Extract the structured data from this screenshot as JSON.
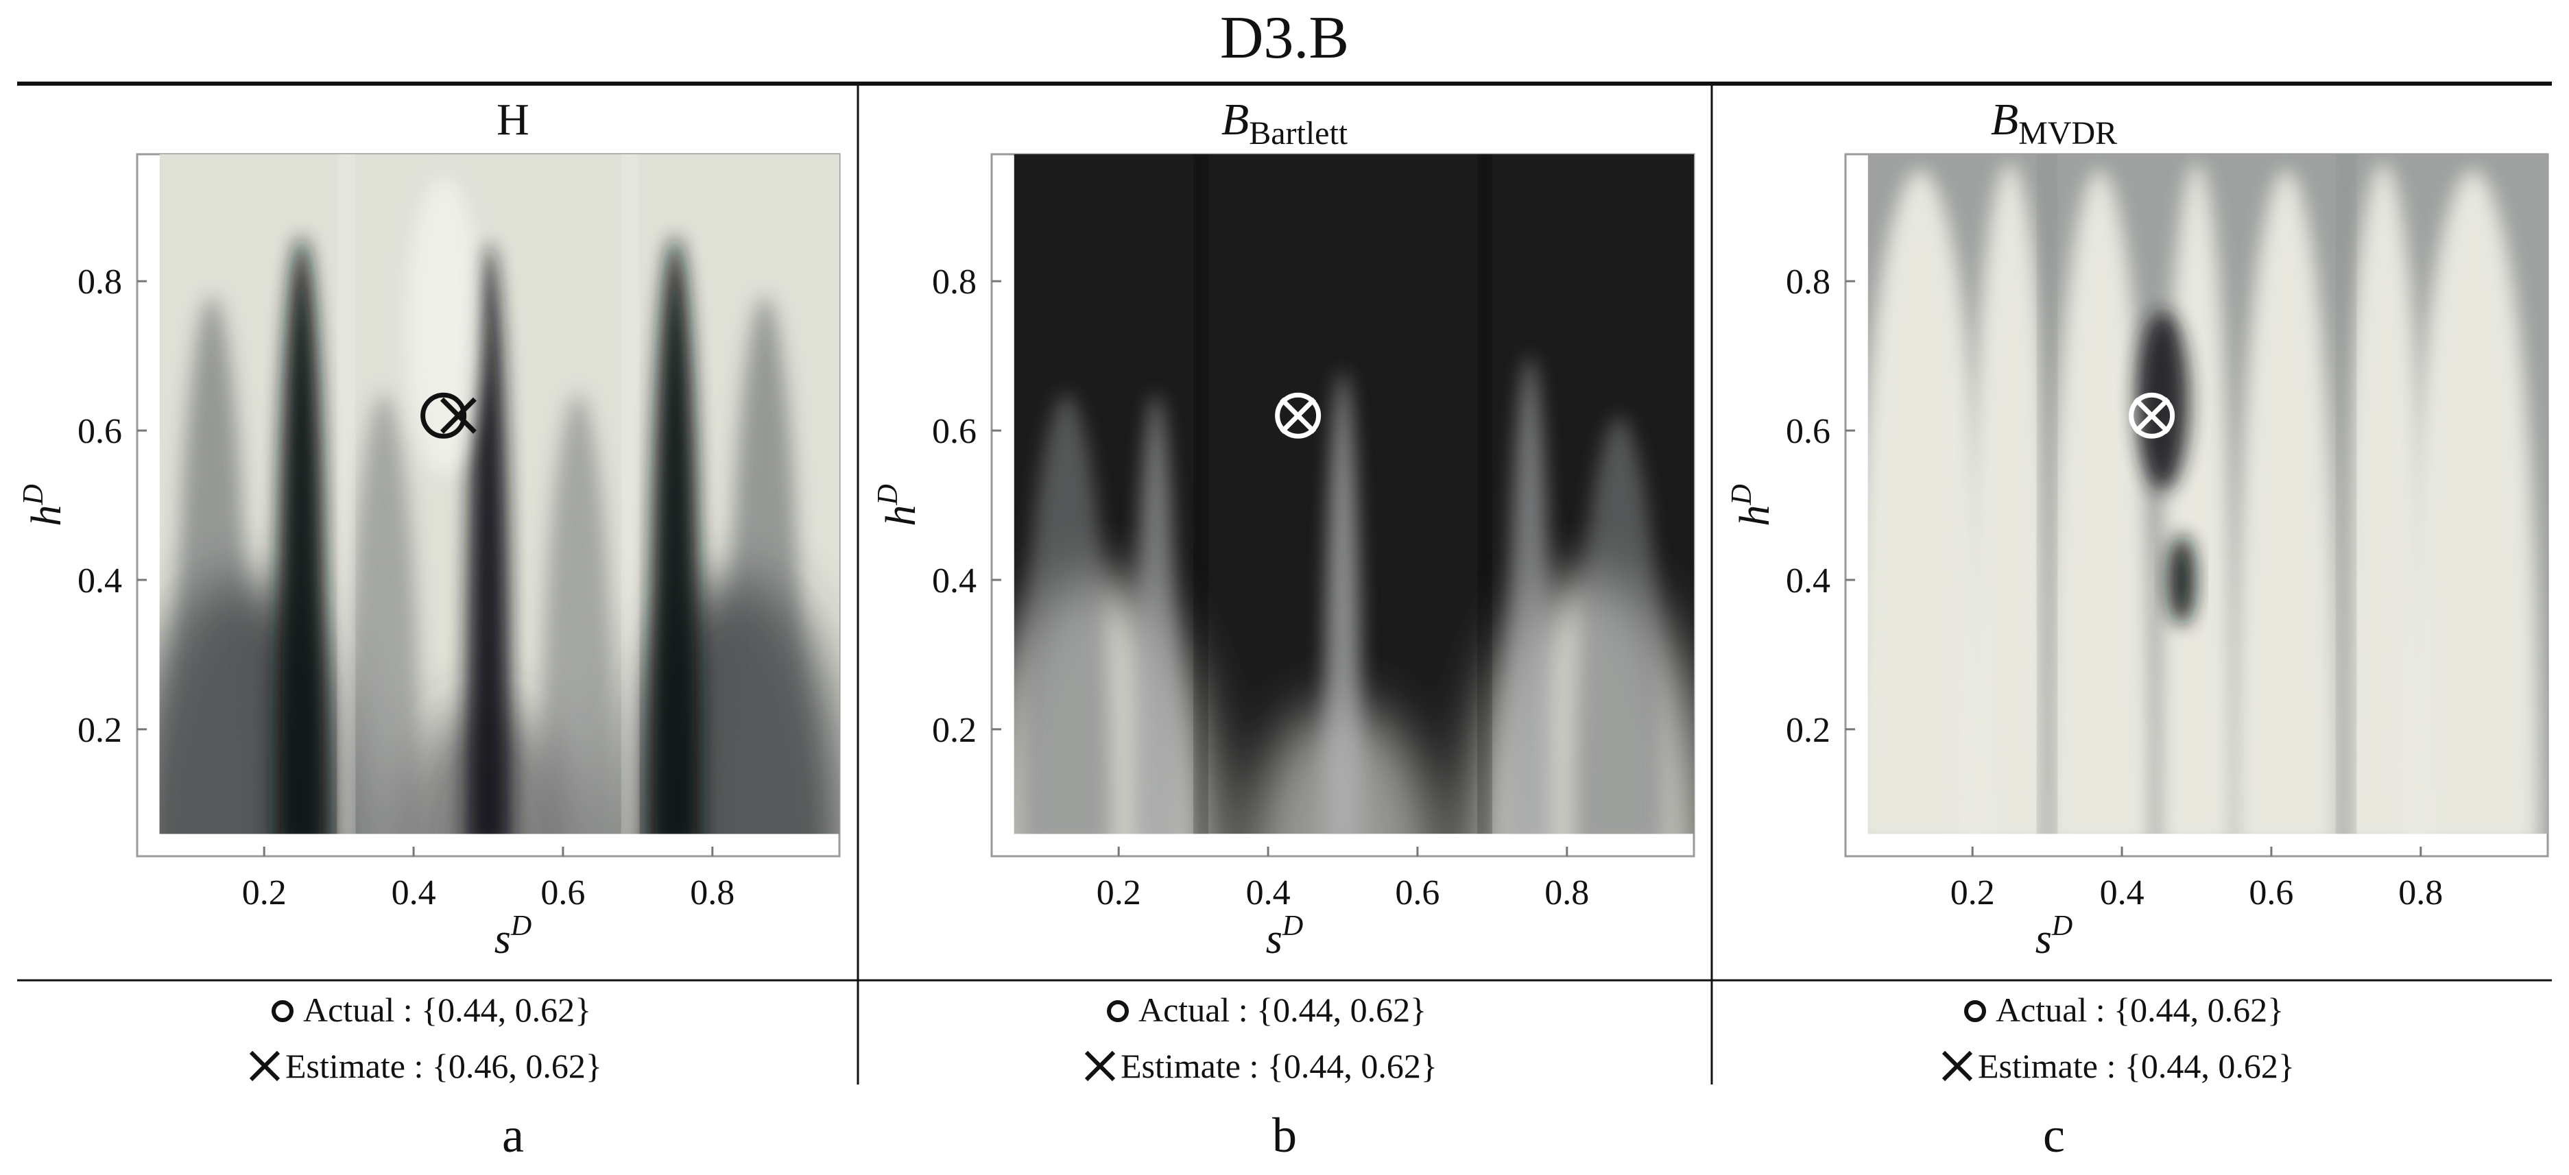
{
  "figure": {
    "title": "D3.B",
    "letters": [
      "a",
      "b",
      "c"
    ]
  },
  "chart_data": [
    {
      "type": "heatmap",
      "id": "H",
      "title": "H",
      "title_sub": "",
      "xlabel_main": "s",
      "xlabel_sup": "D",
      "ylabel_main": "h",
      "ylabel_sup": "D",
      "xlim": [
        0.03,
        0.97
      ],
      "ylim": [
        0.03,
        0.97
      ],
      "plot_range": [
        0.06,
        0.97
      ],
      "xticks": [
        0.2,
        0.4,
        0.6,
        0.8
      ],
      "xtick_labels": [
        "0.2",
        "0.4",
        "0.6",
        "0.8"
      ],
      "yticks": [
        0.2,
        0.4,
        0.6,
        0.8
      ],
      "ytick_labels": [
        "0.2",
        "0.4",
        "0.6",
        "0.8"
      ],
      "background": "#dfe1d7",
      "marker_color": "#111111",
      "actual": [
        0.44,
        0.62
      ],
      "estimate": [
        0.46,
        0.62
      ],
      "legend": {
        "actual_label": "Actual : {0.44, 0.62}",
        "estimate_label": "Estimate : {0.46, 0.62}"
      },
      "features": [
        {
          "kind": "bottom-fan",
          "color": "#3a3d40",
          "opacity": 0.85
        },
        {
          "kind": "ridge",
          "s": 0.13,
          "top": 0.78,
          "width": 0.05,
          "color": "#5a5d60",
          "opacity": 0.55
        },
        {
          "kind": "ridge",
          "s": 0.25,
          "top": 0.86,
          "width": 0.035,
          "color": "#101214",
          "opacity": 0.95
        },
        {
          "kind": "ridge",
          "s": 0.36,
          "top": 0.65,
          "width": 0.05,
          "color": "#6a6d70",
          "opacity": 0.5
        },
        {
          "kind": "ridge",
          "s": 0.5,
          "top": 0.85,
          "width": 0.03,
          "color": "#15171a",
          "opacity": 0.95
        },
        {
          "kind": "ridge",
          "s": 0.62,
          "top": 0.65,
          "width": 0.05,
          "color": "#6a6d70",
          "opacity": 0.5
        },
        {
          "kind": "ridge",
          "s": 0.75,
          "top": 0.86,
          "width": 0.035,
          "color": "#101214",
          "opacity": 0.95
        },
        {
          "kind": "ridge",
          "s": 0.87,
          "top": 0.78,
          "width": 0.05,
          "color": "#5a5d60",
          "opacity": 0.55
        },
        {
          "kind": "stripe",
          "s": 0.31,
          "width": 0.012,
          "color": "#f4f4ee",
          "opacity": 0.9
        },
        {
          "kind": "stripe",
          "s": 0.69,
          "width": 0.012,
          "color": "#f4f4ee",
          "opacity": 0.9
        },
        {
          "kind": "patch",
          "s": 0.44,
          "h": 0.74,
          "rs": 0.05,
          "rh": 0.2,
          "color": "#f2f2ec",
          "opacity": 0.85
        }
      ]
    },
    {
      "type": "heatmap",
      "id": "B_Bartlett",
      "title": "B",
      "title_sub": "Bartlett",
      "xlabel_main": "s",
      "xlabel_sup": "D",
      "ylabel_main": "h",
      "ylabel_sup": "D",
      "xlim": [
        0.03,
        0.97
      ],
      "ylim": [
        0.03,
        0.97
      ],
      "plot_range": [
        0.06,
        0.97
      ],
      "xticks": [
        0.2,
        0.4,
        0.6,
        0.8
      ],
      "xtick_labels": [
        "0.2",
        "0.4",
        "0.6",
        "0.8"
      ],
      "yticks": [
        0.2,
        0.4,
        0.6,
        0.8
      ],
      "ytick_labels": [
        "0.2",
        "0.4",
        "0.6",
        "0.8"
      ],
      "background": "#1b1b1b",
      "marker_color": "#ffffff",
      "actual": [
        0.44,
        0.62
      ],
      "estimate": [
        0.44,
        0.62
      ],
      "legend": {
        "actual_label": "Actual : {0.44, 0.62}",
        "estimate_label": "Estimate : {0.44, 0.62}"
      },
      "features": [
        {
          "kind": "bottom-fan",
          "color": "#d8d8d0",
          "opacity": 0.95
        },
        {
          "kind": "ridge",
          "s": 0.13,
          "top": 0.65,
          "width": 0.06,
          "color": "#7d8082",
          "opacity": 0.6
        },
        {
          "kind": "ridge",
          "s": 0.25,
          "top": 0.65,
          "width": 0.03,
          "color": "#9ea0a2",
          "opacity": 0.7
        },
        {
          "kind": "ridge",
          "s": 0.5,
          "top": 0.68,
          "width": 0.025,
          "color": "#b0b2b4",
          "opacity": 0.75
        },
        {
          "kind": "ridge",
          "s": 0.75,
          "top": 0.7,
          "width": 0.03,
          "color": "#9ea0a2",
          "opacity": 0.7
        },
        {
          "kind": "ridge",
          "s": 0.87,
          "top": 0.62,
          "width": 0.06,
          "color": "#7d8082",
          "opacity": 0.6
        },
        {
          "kind": "stripe",
          "s": 0.31,
          "width": 0.01,
          "color": "#0c0c0c",
          "opacity": 0.8
        },
        {
          "kind": "stripe",
          "s": 0.69,
          "width": 0.01,
          "color": "#0c0c0c",
          "opacity": 0.8
        }
      ]
    },
    {
      "type": "heatmap",
      "id": "B_MVDR",
      "title": "B",
      "title_sub": "MVDR",
      "xlabel_main": "s",
      "xlabel_sup": "D",
      "ylabel_main": "h",
      "ylabel_sup": "D",
      "xlim": [
        0.03,
        0.97
      ],
      "ylim": [
        0.03,
        0.97
      ],
      "plot_range": [
        0.06,
        0.97
      ],
      "xticks": [
        0.2,
        0.4,
        0.6,
        0.8
      ],
      "xtick_labels": [
        "0.2",
        "0.4",
        "0.6",
        "0.8"
      ],
      "yticks": [
        0.2,
        0.4,
        0.6,
        0.8
      ],
      "ytick_labels": [
        "0.2",
        "0.4",
        "0.6",
        "0.8"
      ],
      "background": "#9ea19f",
      "marker_color": "#ffffff",
      "actual": [
        0.44,
        0.62
      ],
      "estimate": [
        0.44,
        0.62
      ],
      "legend": {
        "actual_label": "Actual : {0.44, 0.62}",
        "estimate_label": "Estimate : {0.44, 0.62}"
      },
      "features": [
        {
          "kind": "ridge",
          "s": 0.13,
          "top": 0.95,
          "width": 0.09,
          "color": "#ecece3",
          "opacity": 0.95
        },
        {
          "kind": "ridge",
          "s": 0.25,
          "top": 0.96,
          "width": 0.06,
          "color": "#ecece3",
          "opacity": 0.95
        },
        {
          "kind": "ridge",
          "s": 0.37,
          "top": 0.95,
          "width": 0.07,
          "color": "#ecece3",
          "opacity": 0.95
        },
        {
          "kind": "ridge",
          "s": 0.5,
          "top": 0.96,
          "width": 0.05,
          "color": "#ecece3",
          "opacity": 0.95
        },
        {
          "kind": "ridge",
          "s": 0.62,
          "top": 0.95,
          "width": 0.07,
          "color": "#ecece3",
          "opacity": 0.95
        },
        {
          "kind": "ridge",
          "s": 0.75,
          "top": 0.96,
          "width": 0.06,
          "color": "#ecece3",
          "opacity": 0.95
        },
        {
          "kind": "ridge",
          "s": 0.87,
          "top": 0.95,
          "width": 0.09,
          "color": "#ecece3",
          "opacity": 0.95
        },
        {
          "kind": "stripe",
          "s": 0.3,
          "width": 0.014,
          "color": "#8e918f",
          "opacity": 0.9
        },
        {
          "kind": "stripe",
          "s": 0.7,
          "width": 0.014,
          "color": "#8e918f",
          "opacity": 0.9
        },
        {
          "kind": "patch",
          "s": 0.455,
          "h": 0.64,
          "rs": 0.035,
          "rh": 0.12,
          "color": "#1a1d22",
          "opacity": 0.9
        },
        {
          "kind": "patch",
          "s": 0.48,
          "h": 0.4,
          "rs": 0.018,
          "rh": 0.06,
          "color": "#101214",
          "opacity": 0.95
        }
      ]
    }
  ]
}
